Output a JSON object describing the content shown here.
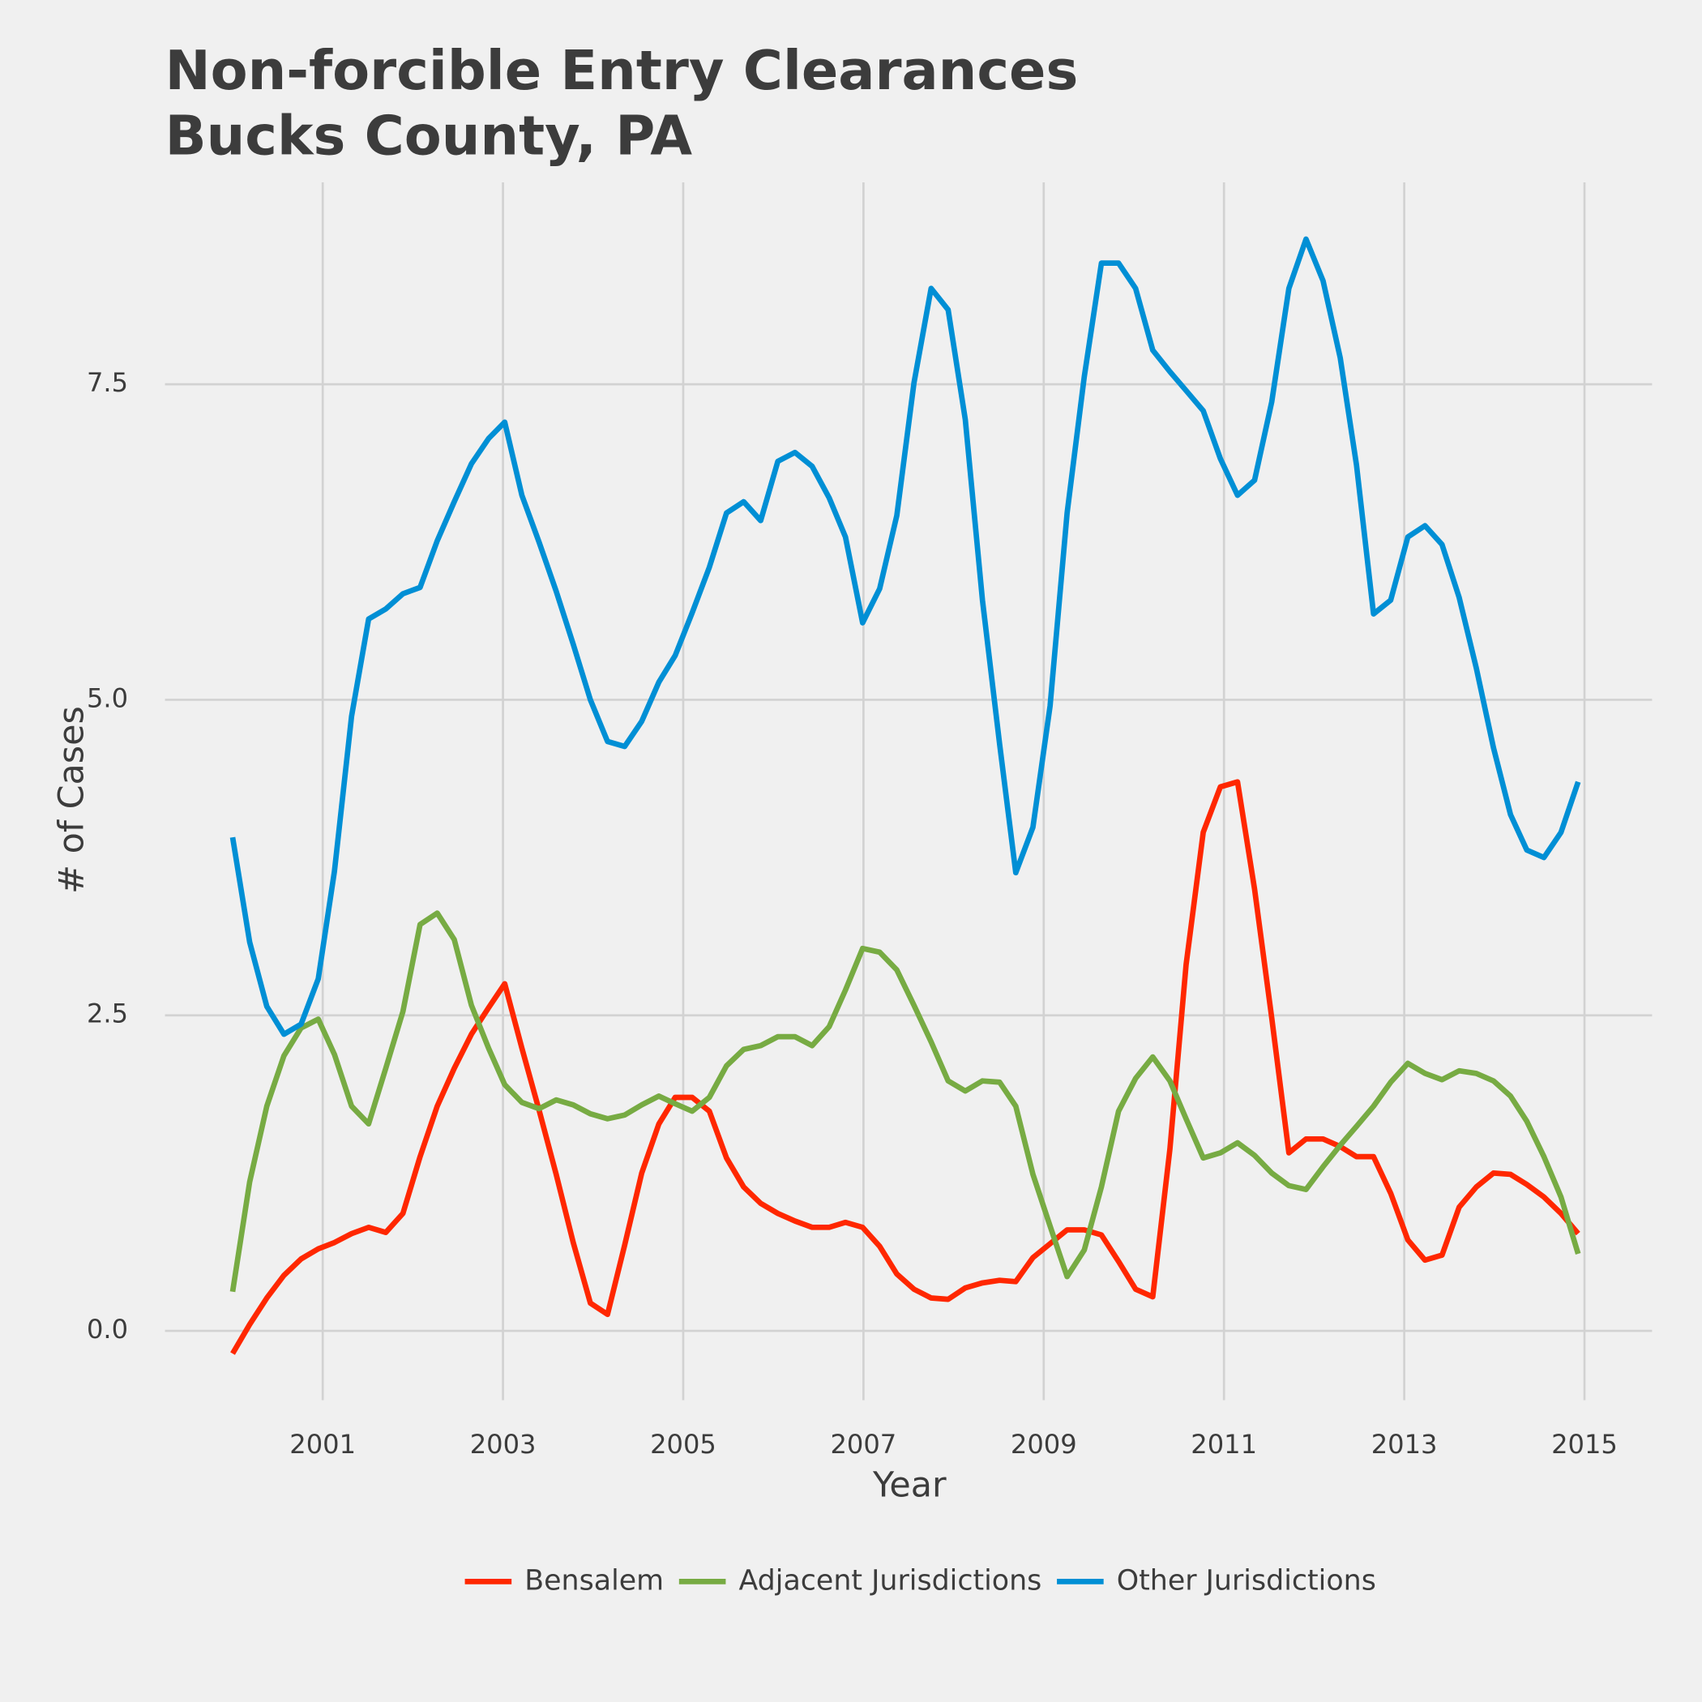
{
  "chart_data": {
    "type": "line",
    "title": "Non-forcible Entry Clearances\nBucks County, PA",
    "xlabel": "Year",
    "ylabel": "# of Cases",
    "x": [
      2000.0,
      2000.19,
      2000.38,
      2000.57,
      2000.76,
      2000.95,
      2001.13,
      2001.32,
      2001.51,
      2001.7,
      2001.89,
      2002.08,
      2002.27,
      2002.46,
      2002.65,
      2002.84,
      2003.02,
      2003.21,
      2003.4,
      2003.59,
      2003.78,
      2003.97,
      2004.16,
      2004.35,
      2004.54,
      2004.73,
      2004.91,
      2005.1,
      2005.29,
      2005.48,
      2005.67,
      2005.86,
      2006.05,
      2006.24,
      2006.43,
      2006.62,
      2006.8,
      2006.99,
      2007.18,
      2007.37,
      2007.56,
      2007.75,
      2007.94,
      2008.13,
      2008.32,
      2008.51,
      2008.69,
      2008.88,
      2009.07,
      2009.26,
      2009.45,
      2009.64,
      2009.83,
      2010.02,
      2010.21,
      2010.4,
      2010.58,
      2010.77,
      2010.96,
      2011.15,
      2011.34,
      2011.53,
      2011.72,
      2011.91,
      2012.1,
      2012.29,
      2012.47,
      2012.66,
      2012.85,
      2013.04,
      2013.23,
      2013.42,
      2013.61,
      2013.8,
      2013.99,
      2014.18,
      2014.36,
      2014.55,
      2014.74,
      2014.93
    ],
    "series": [
      {
        "name": "Bensalem",
        "color": "#ff2700",
        "values": [
          -0.18,
          0.05,
          0.26,
          0.44,
          0.57,
          0.65,
          0.7,
          0.77,
          0.82,
          0.78,
          0.93,
          1.38,
          1.78,
          2.08,
          2.35,
          2.56,
          2.75,
          2.24,
          1.75,
          1.24,
          0.7,
          0.22,
          0.13,
          0.68,
          1.25,
          1.64,
          1.85,
          1.85,
          1.74,
          1.37,
          1.14,
          1.01,
          0.93,
          0.87,
          0.82,
          0.82,
          0.86,
          0.82,
          0.67,
          0.45,
          0.33,
          0.26,
          0.25,
          0.34,
          0.38,
          0.4,
          0.39,
          0.58,
          0.69,
          0.8,
          0.8,
          0.76,
          0.55,
          0.33,
          0.27,
          1.44,
          2.9,
          3.95,
          4.31,
          4.35,
          3.5,
          2.48,
          1.41,
          1.52,
          1.52,
          1.46,
          1.38,
          1.38,
          1.09,
          0.72,
          0.56,
          0.6,
          0.98,
          1.14,
          1.25,
          1.24,
          1.16,
          1.06,
          0.93,
          0.77
        ]
      },
      {
        "name": "Adjacent Jurisdictions",
        "color": "#77ab43",
        "values": [
          0.31,
          1.18,
          1.78,
          2.18,
          2.4,
          2.47,
          2.19,
          1.78,
          1.64,
          2.08,
          2.53,
          3.22,
          3.31,
          3.1,
          2.58,
          2.24,
          1.95,
          1.81,
          1.76,
          1.83,
          1.79,
          1.72,
          1.68,
          1.71,
          1.79,
          1.86,
          1.8,
          1.74,
          1.85,
          2.1,
          2.23,
          2.26,
          2.33,
          2.33,
          2.26,
          2.41,
          2.7,
          3.03,
          3.0,
          2.86,
          2.58,
          2.29,
          1.98,
          1.9,
          1.98,
          1.97,
          1.78,
          1.24,
          0.83,
          0.43,
          0.64,
          1.14,
          1.74,
          2.0,
          2.17,
          1.98,
          1.68,
          1.37,
          1.41,
          1.49,
          1.39,
          1.25,
          1.15,
          1.12,
          1.3,
          1.47,
          1.62,
          1.78,
          1.97,
          2.12,
          2.04,
          1.99,
          2.06,
          2.04,
          1.98,
          1.86,
          1.66,
          1.38,
          1.06,
          0.61
        ]
      },
      {
        "name": "Other Jurisdictions",
        "color": "#008fd5",
        "values": [
          3.91,
          3.08,
          2.57,
          2.35,
          2.43,
          2.79,
          3.64,
          4.87,
          5.64,
          5.72,
          5.84,
          5.89,
          6.26,
          6.57,
          6.87,
          7.07,
          7.2,
          6.62,
          6.25,
          5.86,
          5.44,
          5.0,
          4.67,
          4.63,
          4.83,
          5.14,
          5.35,
          5.69,
          6.05,
          6.48,
          6.57,
          6.42,
          6.89,
          6.96,
          6.85,
          6.6,
          6.29,
          5.61,
          5.88,
          6.46,
          7.51,
          8.26,
          8.09,
          7.22,
          5.79,
          4.65,
          3.63,
          3.99,
          4.95,
          6.48,
          7.56,
          8.46,
          8.46,
          8.26,
          7.77,
          7.6,
          7.45,
          7.29,
          6.91,
          6.62,
          6.74,
          7.36,
          8.26,
          8.65,
          8.32,
          7.71,
          6.86,
          5.68,
          5.79,
          6.29,
          6.38,
          6.23,
          5.81,
          5.25,
          4.62,
          4.09,
          3.81,
          3.75,
          3.95,
          4.35
        ]
      }
    ],
    "xlim": [
      1999.25,
      2015.75
    ],
    "xticks": [
      2001,
      2003,
      2005,
      2007,
      2009,
      2011,
      2013,
      2015
    ],
    "ylim": [
      -0.55,
      9.1
    ],
    "yticks": [
      {
        "value": 0,
        "label": "0.0"
      },
      2.5,
      {
        "value": 5,
        "label": "5.0"
      },
      7.5
    ],
    "grid": true,
    "legend": "bottom"
  }
}
